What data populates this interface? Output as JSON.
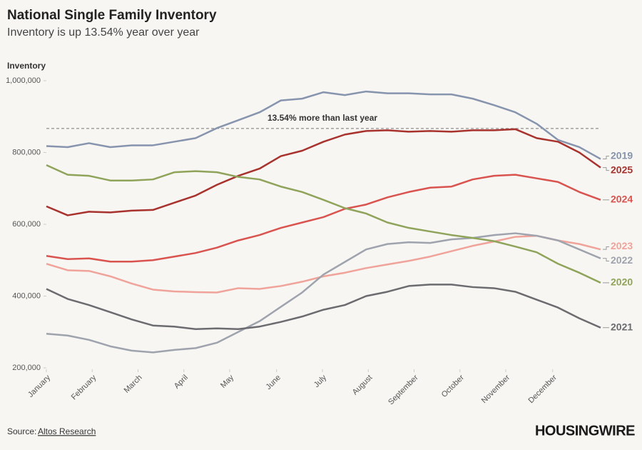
{
  "chart_data": {
    "type": "line",
    "title": "National Single Family Inventory",
    "subtitle": "Inventory is up 13.54% year over year",
    "y_label": "Inventory",
    "source_label": "Source:",
    "source": "Altos Research",
    "logo": "HOUSINGWIRE",
    "annotation": {
      "text": "13.54% more than last year",
      "value": 867000
    },
    "xlim": [
      0,
      52
    ],
    "xticks": [
      {
        "value": 0,
        "label": "January"
      },
      {
        "value": 4.3,
        "label": "February"
      },
      {
        "value": 8.6,
        "label": "March"
      },
      {
        "value": 12.9,
        "label": "April"
      },
      {
        "value": 17.2,
        "label": "May"
      },
      {
        "value": 21.6,
        "label": "June"
      },
      {
        "value": 25.9,
        "label": "July"
      },
      {
        "value": 30.2,
        "label": "August"
      },
      {
        "value": 34.5,
        "label": "September"
      },
      {
        "value": 38.8,
        "label": "October"
      },
      {
        "value": 43.1,
        "label": "November"
      },
      {
        "value": 47.5,
        "label": "December"
      }
    ],
    "ylim": [
      200000,
      1000000
    ],
    "yticks": [
      {
        "value": 200000,
        "label": "200,000"
      },
      {
        "value": 400000,
        "label": "400,000"
      },
      {
        "value": 600000,
        "label": "600,000"
      },
      {
        "value": 800000,
        "label": "800,000"
      },
      {
        "value": 1000000,
        "label": "1,000,000"
      }
    ],
    "x": [
      0,
      2,
      4,
      6,
      8,
      10,
      12,
      14,
      16,
      18,
      20,
      22,
      24,
      26,
      28,
      30,
      32,
      34,
      36,
      38,
      40,
      42,
      44,
      46,
      48,
      50,
      52
    ],
    "series": [
      {
        "name": "2019",
        "color": "#8794ae",
        "values": [
          818000,
          815000,
          826000,
          815000,
          820000,
          820000,
          830000,
          840000,
          868000,
          890000,
          912000,
          945000,
          950000,
          968000,
          960000,
          970000,
          965000,
          965000,
          962000,
          962000,
          950000,
          932000,
          912000,
          880000,
          835000,
          815000,
          782000
        ]
      },
      {
        "name": "2025",
        "color": "#a8322d",
        "values": [
          650000,
          625000,
          635000,
          633000,
          638000,
          640000,
          660000,
          680000,
          710000,
          735000,
          755000,
          790000,
          805000,
          830000,
          850000,
          860000,
          862000,
          858000,
          860000,
          858000,
          862000,
          862000,
          865000,
          840000,
          830000,
          800000,
          758000
        ]
      },
      {
        "name": "2024",
        "color": "#d9534f",
        "values": [
          512000,
          503000,
          505000,
          496000,
          496000,
          500000,
          510000,
          520000,
          535000,
          555000,
          570000,
          590000,
          605000,
          620000,
          643000,
          655000,
          675000,
          690000,
          702000,
          705000,
          725000,
          735000,
          738000,
          728000,
          718000,
          690000,
          668000
        ]
      },
      {
        "name": "2023",
        "color": "#f0a39a",
        "values": [
          490000,
          472000,
          470000,
          455000,
          435000,
          418000,
          413000,
          411000,
          410000,
          422000,
          420000,
          428000,
          440000,
          455000,
          465000,
          478000,
          488000,
          498000,
          510000,
          525000,
          540000,
          552000,
          565000,
          568000,
          555000,
          545000,
          530000
        ]
      },
      {
        "name": "2022",
        "color": "#9ea3ae",
        "values": [
          295000,
          290000,
          278000,
          260000,
          248000,
          243000,
          250000,
          255000,
          270000,
          300000,
          330000,
          370000,
          410000,
          460000,
          495000,
          530000,
          545000,
          550000,
          548000,
          558000,
          562000,
          570000,
          575000,
          568000,
          555000,
          530000,
          505000
        ]
      },
      {
        "name": "2020",
        "color": "#8fa45a",
        "values": [
          765000,
          738000,
          735000,
          722000,
          722000,
          725000,
          745000,
          748000,
          745000,
          732000,
          725000,
          705000,
          690000,
          668000,
          645000,
          630000,
          605000,
          590000,
          580000,
          570000,
          562000,
          553000,
          538000,
          522000,
          490000,
          465000,
          437000
        ]
      },
      {
        "name": "2021",
        "color": "#6b6b70",
        "values": [
          420000,
          392000,
          375000,
          355000,
          335000,
          318000,
          315000,
          308000,
          310000,
          308000,
          315000,
          328000,
          343000,
          362000,
          375000,
          400000,
          412000,
          428000,
          432000,
          432000,
          425000,
          422000,
          412000,
          390000,
          368000,
          338000,
          312000
        ]
      }
    ]
  }
}
